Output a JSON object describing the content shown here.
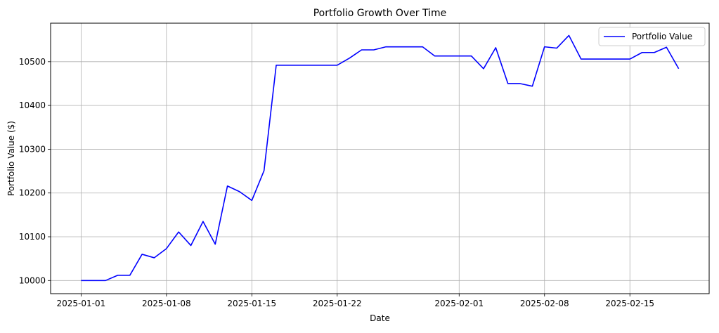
{
  "chart_data": {
    "type": "line",
    "title": "Portfolio Growth Over Time",
    "xlabel": "Date",
    "ylabel": "Portfolio Value ($)",
    "x_ticks": [
      "2025-01-01",
      "2025-01-08",
      "2025-01-15",
      "2025-01-22",
      "2025-02-01",
      "2025-02-08",
      "2025-02-15"
    ],
    "y_ticks": [
      10000,
      10100,
      10200,
      10300,
      10400,
      10500
    ],
    "xlim": [
      "2025-12-31",
      "2025-02-23"
    ],
    "ylim": [
      9970,
      10588
    ],
    "grid": true,
    "legend_position": "top-right",
    "series": [
      {
        "name": "Portfolio Value",
        "color": "#0000ff",
        "points": [
          [
            "2025-01-01",
            10000
          ],
          [
            "2025-01-02",
            10000
          ],
          [
            "2025-01-03",
            10000
          ],
          [
            "2025-01-04",
            10012
          ],
          [
            "2025-01-05",
            10012
          ],
          [
            "2025-01-06",
            10060
          ],
          [
            "2025-01-07",
            10052
          ],
          [
            "2025-01-08",
            10073
          ],
          [
            "2025-01-09",
            10111
          ],
          [
            "2025-01-10",
            10080
          ],
          [
            "2025-01-11",
            10135
          ],
          [
            "2025-01-12",
            10083
          ],
          [
            "2025-01-13",
            10216
          ],
          [
            "2025-01-14",
            10203
          ],
          [
            "2025-01-15",
            10183
          ],
          [
            "2025-01-16",
            10251
          ],
          [
            "2025-01-17",
            10492
          ],
          [
            "2025-01-18",
            10492
          ],
          [
            "2025-01-19",
            10492
          ],
          [
            "2025-01-20",
            10492
          ],
          [
            "2025-01-21",
            10492
          ],
          [
            "2025-01-22",
            10492
          ],
          [
            "2025-01-23",
            10508
          ],
          [
            "2025-01-24",
            10527
          ],
          [
            "2025-01-25",
            10527
          ],
          [
            "2025-01-26",
            10534
          ],
          [
            "2025-01-27",
            10534
          ],
          [
            "2025-01-28",
            10534
          ],
          [
            "2025-01-29",
            10534
          ],
          [
            "2025-01-30",
            10513
          ],
          [
            "2025-01-31",
            10513
          ],
          [
            "2025-02-01",
            10513
          ],
          [
            "2025-02-02",
            10513
          ],
          [
            "2025-02-03",
            10484
          ],
          [
            "2025-02-04",
            10532
          ],
          [
            "2025-02-05",
            10450
          ],
          [
            "2025-02-06",
            10450
          ],
          [
            "2025-02-07",
            10444
          ],
          [
            "2025-02-08",
            10534
          ],
          [
            "2025-02-09",
            10531
          ],
          [
            "2025-02-10",
            10560
          ],
          [
            "2025-02-11",
            10506
          ],
          [
            "2025-02-12",
            10506
          ],
          [
            "2025-02-13",
            10506
          ],
          [
            "2025-02-14",
            10506
          ],
          [
            "2025-02-15",
            10506
          ],
          [
            "2025-02-16",
            10521
          ],
          [
            "2025-02-17",
            10521
          ],
          [
            "2025-02-18",
            10533
          ],
          [
            "2025-02-19",
            10484
          ]
        ]
      }
    ]
  }
}
